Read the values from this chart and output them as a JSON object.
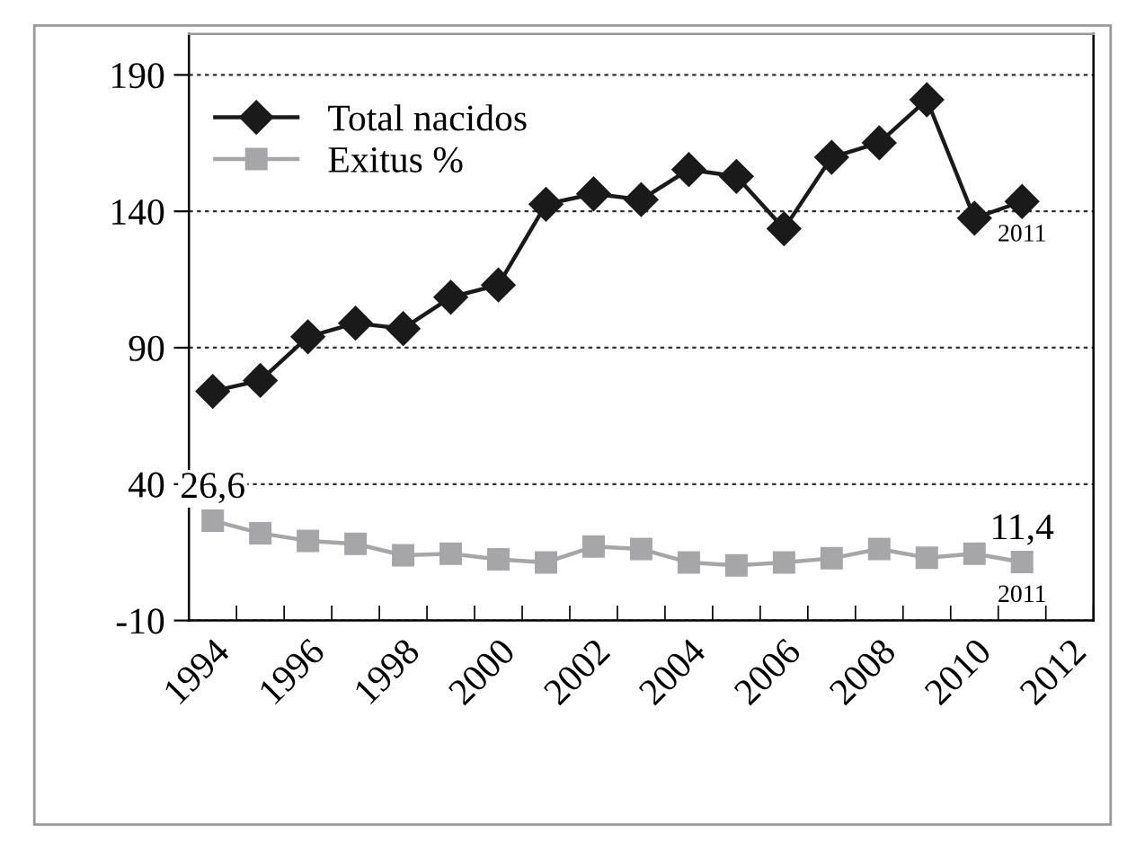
{
  "chart_data": {
    "type": "line",
    "categories": [
      "1994",
      null,
      "1996",
      null,
      "1998",
      null,
      "2000",
      null,
      "2002",
      null,
      "2004",
      null,
      "2006",
      null,
      "2008",
      null,
      "2010",
      null,
      "2012"
    ],
    "series": [
      {
        "name": "Total nacidos",
        "color": "#1a1a1a",
        "marker": "diamond",
        "values": [
          74,
          78,
          94,
          99,
          97,
          108.5,
          113,
          142.6,
          146.4,
          144.3,
          155.3,
          152.8,
          133.6,
          159.8,
          165.1,
          180.9,
          137.5,
          143.6,
          null
        ]
      },
      {
        "name": "Exitus %",
        "color": "#a6a6a8",
        "marker": "square",
        "values": [
          26.6,
          22,
          19.2,
          18.1,
          13.9,
          14.5,
          12.4,
          11.3,
          17.1,
          16.2,
          11.3,
          10.2,
          11.3,
          12.8,
          16.2,
          13.0,
          14.5,
          11.4,
          null
        ],
        "value_labels": [
          "26,6",
          null,
          null,
          null,
          null,
          null,
          null,
          null,
          null,
          null,
          null,
          null,
          null,
          null,
          null,
          null,
          null,
          "11,4",
          null
        ]
      }
    ],
    "annotations": [
      {
        "text": "2011",
        "y": 143.6
      },
      {
        "text": "2011",
        "y": 11.4
      }
    ],
    "ylim": [
      -10,
      205
    ],
    "yticks": [
      -10,
      40,
      90,
      140,
      190
    ],
    "grid": "y",
    "legend": "top left",
    "line_style": "solid"
  }
}
